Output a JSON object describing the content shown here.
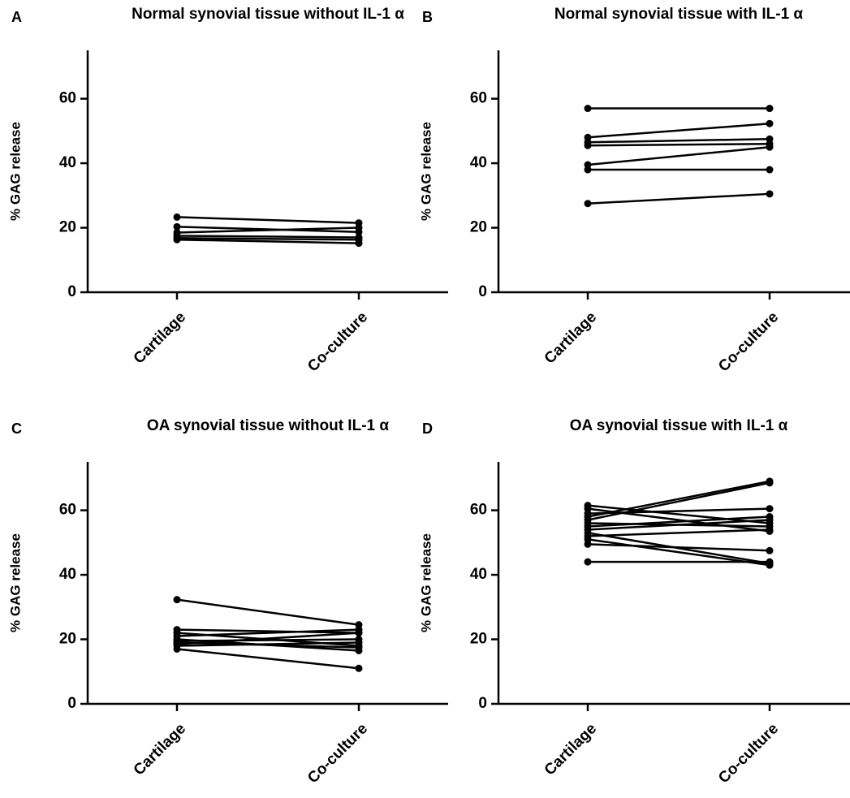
{
  "chart_data": [
    {
      "type": "line",
      "panel_label": "A",
      "title": "Normal synovial tissue without IL-1 α",
      "ylabel": "% GAG release",
      "categories": [
        "Cartilage",
        "Co-culture"
      ],
      "color": "#000000",
      "ylim": [
        0,
        75
      ],
      "yticks": [
        0,
        20,
        40,
        60
      ],
      "series": [
        {
          "values": [
            23.3,
            21.5
          ]
        },
        {
          "values": [
            20.3,
            18.7
          ]
        },
        {
          "values": [
            18.5,
            20.0
          ]
        },
        {
          "values": [
            17.5,
            17.0
          ]
        },
        {
          "values": [
            16.8,
            16.3
          ]
        },
        {
          "values": [
            16.3,
            15.2
          ]
        }
      ]
    },
    {
      "type": "line",
      "panel_label": "B",
      "title": "Normal synovial tissue with IL-1 α",
      "ylabel": "% GAG release",
      "categories": [
        "Cartilage",
        "Co-culture"
      ],
      "color": "#000000",
      "ylim": [
        0,
        75
      ],
      "yticks": [
        0,
        20,
        40,
        60
      ],
      "series": [
        {
          "values": [
            57,
            57
          ]
        },
        {
          "values": [
            48,
            52.3
          ]
        },
        {
          "values": [
            46.5,
            47.5
          ]
        },
        {
          "values": [
            45.5,
            46
          ]
        },
        {
          "values": [
            39.5,
            45
          ]
        },
        {
          "values": [
            38,
            38
          ]
        },
        {
          "values": [
            27.5,
            30.5
          ]
        }
      ]
    },
    {
      "type": "line",
      "panel_label": "C",
      "title": "OA synovial tissue without IL-1 α",
      "ylabel": "% GAG release",
      "categories": [
        "Cartilage",
        "Co-culture"
      ],
      "color": "#000000",
      "ylim": [
        0,
        75
      ],
      "yticks": [
        0,
        20,
        40,
        60
      ],
      "series": [
        {
          "values": [
            32.3,
            24.5
          ]
        },
        {
          "values": [
            23,
            22
          ]
        },
        {
          "values": [
            22,
            18
          ]
        },
        {
          "values": [
            21,
            23
          ]
        },
        {
          "values": [
            20,
            16.5
          ]
        },
        {
          "values": [
            19.5,
            20
          ]
        },
        {
          "values": [
            19,
            17.5
          ]
        },
        {
          "values": [
            18.5,
            22
          ]
        },
        {
          "values": [
            18,
            19
          ]
        },
        {
          "values": [
            17,
            11
          ]
        }
      ]
    },
    {
      "type": "line",
      "panel_label": "D",
      "title": "OA synovial tissue with IL-1 α",
      "ylabel": "% GAG release",
      "categories": [
        "Cartilage",
        "Co-culture"
      ],
      "color": "#000000",
      "ylim": [
        0,
        75
      ],
      "yticks": [
        0,
        20,
        40,
        60
      ],
      "series": [
        {
          "values": [
            61.5,
            56
          ]
        },
        {
          "values": [
            60.5,
            53.5
          ]
        },
        {
          "values": [
            59,
            60.5
          ]
        },
        {
          "values": [
            58,
            69
          ]
        },
        {
          "values": [
            57,
            68.5
          ]
        },
        {
          "values": [
            56,
            55
          ]
        },
        {
          "values": [
            55,
            58
          ]
        },
        {
          "values": [
            54,
            57
          ]
        },
        {
          "values": [
            53,
            43.5
          ]
        },
        {
          "values": [
            52,
            54
          ]
        },
        {
          "values": [
            51,
            43
          ]
        },
        {
          "values": [
            49.5,
            47.5
          ]
        },
        {
          "values": [
            44,
            44
          ]
        }
      ]
    }
  ]
}
